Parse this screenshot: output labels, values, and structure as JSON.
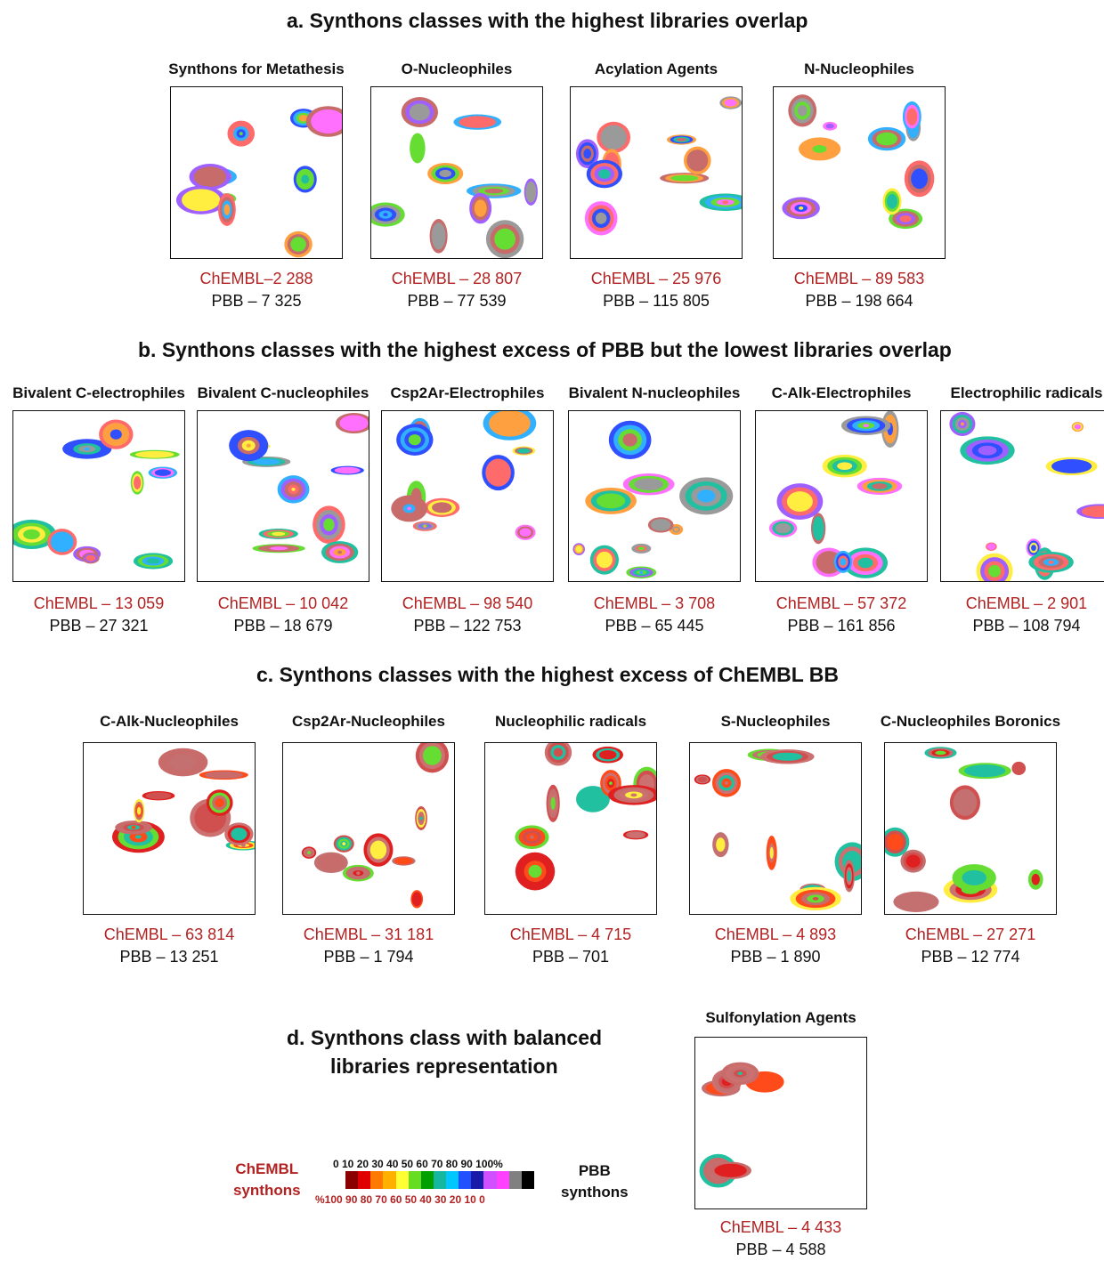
{
  "sections": {
    "a": "a. Synthons classes with the highest libraries overlap",
    "b": "b. Synthons classes  with the highest excess of PBB but the lowest libraries overlap",
    "c": "c. Synthons classes with the highest excess of ChEMBL BB",
    "d_line1": "d. Synthons class with balanced",
    "d_line2": "libraries representation"
  },
  "panels": {
    "a": [
      {
        "title": "Synthons for Metathesis",
        "chembl": "ChEMBL–2 288",
        "pbb": "PBB – 7 325"
      },
      {
        "title": "O-Nucleophiles",
        "chembl": "ChEMBL – 28 807",
        "pbb": "PBB – 77 539"
      },
      {
        "title": "Acylation Agents",
        "chembl": "ChEMBL – 25 976",
        "pbb": "PBB – 115 805"
      },
      {
        "title": "N-Nucleophiles",
        "chembl": "ChEMBL – 89 583",
        "pbb": "PBB – 198 664"
      }
    ],
    "b": [
      {
        "title": "Bivalent C-electrophiles",
        "chembl": "ChEMBL – 13 059",
        "pbb": "PBB – 27 321"
      },
      {
        "title": "Bivalent C-nucleophiles",
        "chembl": "ChEMBL – 10 042",
        "pbb": "PBB – 18 679"
      },
      {
        "title": "Csp2Ar-Electrophiles",
        "chembl": "ChEMBL – 98 540",
        "pbb": "PBB – 122 753"
      },
      {
        "title": "Bivalent N-nucleophiles",
        "chembl": "ChEMBL – 3 708",
        "pbb": "PBB – 65 445"
      },
      {
        "title": "C-Alk-Electrophiles",
        "chembl": "ChEMBL – 57 372",
        "pbb": "PBB – 161 856"
      },
      {
        "title": "Electrophilic radicals",
        "chembl": "ChEMBL – 2 901",
        "pbb": "PBB – 108 794"
      }
    ],
    "c": [
      {
        "title": "C-Alk-Nucleophiles",
        "chembl": "ChEMBL – 63 814",
        "pbb": "PBB – 13 251"
      },
      {
        "title": "Csp2Ar-Nucleophiles",
        "chembl": "ChEMBL – 31 181",
        "pbb": "PBB – 1 794"
      },
      {
        "title": "Nucleophilic radicals",
        "chembl": "ChEMBL – 4 715",
        "pbb": "PBB – 701"
      },
      {
        "title": "S-Nucleophiles",
        "chembl": "ChEMBL – 4 893",
        "pbb": "PBB – 1 890"
      },
      {
        "title": "C-Nucleophiles Boronics",
        "chembl": "ChEMBL – 27 271",
        "pbb": "PBB – 12 774"
      }
    ],
    "d": [
      {
        "title": "Sulfonylation Agents",
        "chembl": "ChEMBL – 4 433",
        "pbb": "PBB – 4 588"
      }
    ]
  },
  "legend": {
    "left_line1": "ChEMBL",
    "left_line2": "synthons",
    "right_line1": "PBB",
    "right_line2": "synthons",
    "top_ticks": "0  10  20  30  40  50  60  70  80  90  100%",
    "bottom_ticks": "%100  90  80  70  60  50  40  30  20  10  0",
    "colors": [
      "#8b0000",
      "#e00000",
      "#ff7a00",
      "#ffb000",
      "#ffff33",
      "#66dd22",
      "#00a000",
      "#16b7a0",
      "#00c8ff",
      "#2050ff",
      "#1a1aa8",
      "#d050ff",
      "#ff40ff",
      "#808080",
      "#000000"
    ]
  }
}
